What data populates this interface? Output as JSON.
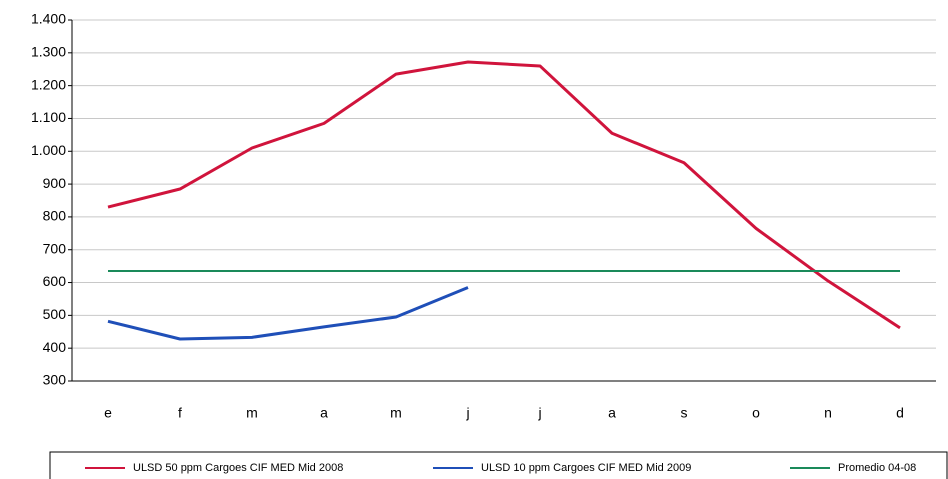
{
  "chart_data": {
    "type": "line",
    "categories": [
      "e",
      "f",
      "m",
      "a",
      "m",
      "j",
      "j",
      "a",
      "s",
      "o",
      "n",
      "d"
    ],
    "series": [
      {
        "name": "ULSD 50 ppm Cargoes  CIF MED Mid 2008",
        "color": "#d0143c",
        "values": [
          830,
          885,
          1010,
          1085,
          1235,
          1272,
          1260,
          1055,
          965,
          765,
          605,
          462
        ]
      },
      {
        "name": "ULSD 10 ppm Cargoes  CIF MED Mid 2009",
        "color": "#1f4fb8",
        "values": [
          482,
          428,
          433,
          465,
          495,
          585,
          null,
          null,
          null,
          null,
          null,
          null
        ]
      },
      {
        "name": "Promedio 04-08",
        "color": "#1a8a5a",
        "values": [
          635,
          635,
          635,
          635,
          635,
          635,
          635,
          635,
          635,
          635,
          635,
          635
        ]
      }
    ],
    "ylim": [
      300,
      1400
    ],
    "yticks": [
      300,
      400,
      500,
      600,
      700,
      800,
      900,
      {
        "value": 1000,
        "label": "1.000"
      },
      {
        "value": 1100,
        "label": "1.100"
      },
      {
        "value": 1200,
        "label": "1.200"
      },
      {
        "value": 1300,
        "label": "1.300"
      },
      {
        "value": 1400,
        "label": "1.400"
      }
    ],
    "grid": true,
    "legend": "bottom"
  }
}
